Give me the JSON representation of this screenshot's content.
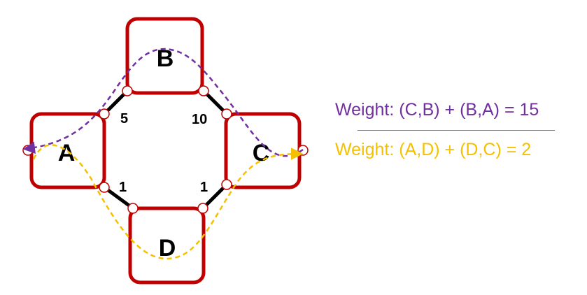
{
  "nodes": {
    "a": {
      "label": "A"
    },
    "b": {
      "label": "B"
    },
    "c": {
      "label": "C"
    },
    "d": {
      "label": "D"
    }
  },
  "edges": {
    "a_b": {
      "weight": "5"
    },
    "b_c": {
      "weight": "10"
    },
    "a_d": {
      "weight": "1"
    },
    "d_c": {
      "weight": "1"
    }
  },
  "paths": {
    "purple": {
      "formula": "Weight: (C,B) + (B,A) = 15",
      "color": "#7030a0"
    },
    "orange": {
      "formula": "Weight: (A,D) + (D,C) =  2",
      "color": "#f5c000"
    }
  },
  "colors": {
    "node_border": "#c00000",
    "edge": "#000000"
  }
}
